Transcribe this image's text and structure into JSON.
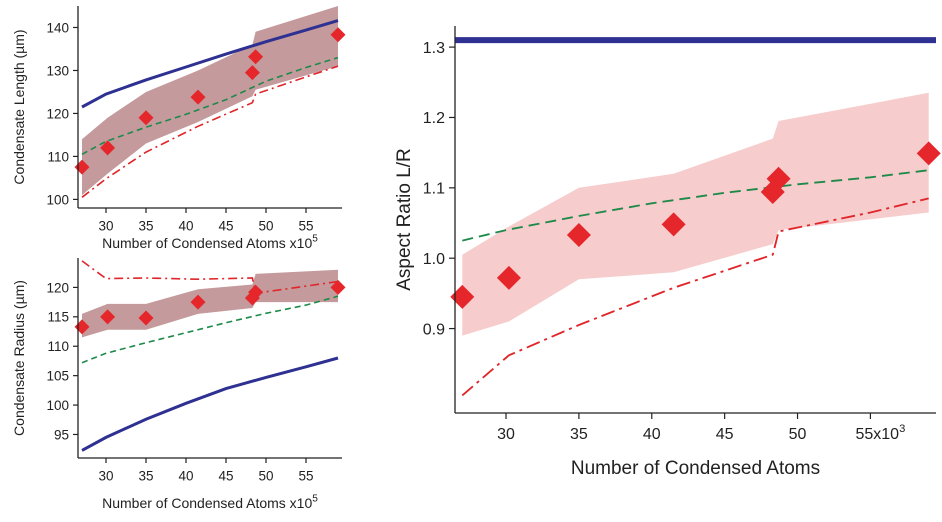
{
  "chart_data": [
    {
      "id": "length",
      "type": "scatter",
      "title": "",
      "xlabel": "Number of Condensed Atoms x10",
      "xlabel_exp": "5",
      "ylabel": "Condensate Length (µm)",
      "xlim": [
        26.5,
        59.5
      ],
      "ylim": [
        98,
        145
      ],
      "xticks": [
        30,
        35,
        40,
        45,
        50,
        55
      ],
      "xtick_labels": [
        "30",
        "35",
        "40",
        "45",
        "50",
        "55"
      ],
      "yticks": [
        100,
        110,
        120,
        130,
        140
      ],
      "ytick_labels": [
        "100",
        "110",
        "120",
        "130",
        "140"
      ],
      "band": {
        "x": [
          27,
          30.2,
          35,
          41.5,
          48.3,
          48.7,
          59
        ],
        "lower": [
          101,
          106,
          113,
          118,
          124,
          125.5,
          131
        ],
        "upper": [
          114,
          119,
          125,
          130,
          136,
          139,
          145
        ],
        "color": "#c49a9c"
      },
      "series": [
        {
          "style": "solid",
          "color": "#2e3192",
          "x": [
            27,
            30,
            35,
            40,
            45,
            50,
            55,
            59
          ],
          "y": [
            121.5,
            124.5,
            127.8,
            130.8,
            133.8,
            136.7,
            139.4,
            141.6
          ]
        },
        {
          "style": "dashed",
          "color": "#1e8a4a",
          "x": [
            27,
            30,
            35,
            40,
            45,
            50,
            55,
            59
          ],
          "y": [
            110.5,
            113.5,
            116.8,
            119.8,
            123.2,
            127.5,
            130.7,
            133
          ]
        },
        {
          "style": "dashdot",
          "color": "#e0262a",
          "x": [
            27,
            30,
            35,
            41.5,
            48.3,
            48.7,
            55,
            59
          ],
          "y": [
            100.5,
            104.8,
            111,
            117,
            122.5,
            124.5,
            128.5,
            131
          ]
        },
        {
          "style": "marker",
          "color": "#e5262b",
          "x": [
            27,
            30.2,
            35,
            41.5,
            48.3,
            48.7,
            59
          ],
          "y": [
            107.5,
            112,
            119,
            123.8,
            129.5,
            133.2,
            138.3
          ]
        }
      ]
    },
    {
      "id": "radius",
      "type": "scatter",
      "title": "",
      "xlabel": "Number of Condensed Atoms x10",
      "xlabel_exp": "5",
      "ylabel": "Condensate Radius (µm)",
      "xlim": [
        26.5,
        59.5
      ],
      "ylim": [
        91,
        125
      ],
      "xticks": [
        30,
        35,
        40,
        45,
        50,
        55
      ],
      "xtick_labels": [
        "30",
        "35",
        "40",
        "45",
        "50",
        "55"
      ],
      "yticks": [
        95,
        100,
        105,
        110,
        115,
        120
      ],
      "ytick_labels": [
        "95",
        "100",
        "105",
        "110",
        "115",
        "120"
      ],
      "band": {
        "x": [
          27,
          30.2,
          35,
          41.5,
          48.3,
          48.7,
          59
        ],
        "lower": [
          111.5,
          112.8,
          112.8,
          115.5,
          116.5,
          117.5,
          117.5
        ],
        "upper": [
          115.5,
          117.2,
          117.2,
          119.7,
          120.5,
          122.3,
          123
        ],
        "color": "#c49a9c"
      },
      "series": [
        {
          "style": "solid",
          "color": "#2e3192",
          "x": [
            27,
            30,
            35,
            40,
            45,
            50,
            55,
            59
          ],
          "y": [
            92.3,
            94.5,
            97.6,
            100.3,
            102.8,
            104.7,
            106.5,
            108
          ]
        },
        {
          "style": "dashed",
          "color": "#1e8a4a",
          "x": [
            27,
            30,
            35,
            40,
            45,
            50,
            55,
            59
          ],
          "y": [
            107.2,
            108.8,
            110.6,
            112.3,
            114,
            115.6,
            117,
            118.5
          ]
        },
        {
          "style": "dashdot",
          "color": "#e0262a",
          "x": [
            27,
            30,
            35,
            41.5,
            48.3,
            48.7,
            59
          ],
          "y": [
            124.5,
            121.5,
            121.6,
            121.4,
            121.6,
            119,
            121
          ]
        },
        {
          "style": "marker",
          "color": "#e5262b",
          "x": [
            27,
            30.2,
            35,
            41.5,
            48.3,
            48.7,
            59
          ],
          "y": [
            113.3,
            115,
            114.8,
            117.5,
            118.2,
            119.2,
            120
          ]
        }
      ]
    },
    {
      "id": "ratio",
      "type": "scatter",
      "title": "",
      "xlabel": "Number of Condensed Atoms",
      "ylabel": "Aspect Ratio L/R",
      "xlim": [
        26.5,
        59.5
      ],
      "ylim": [
        0.78,
        1.33
      ],
      "xticks": [
        30,
        35,
        40,
        45,
        50,
        55
      ],
      "xtick_labels": [
        "30",
        "35",
        "40",
        "45",
        "50",
        "55x10³"
      ],
      "yticks": [
        0.9,
        1.0,
        1.1,
        1.2,
        1.3
      ],
      "ytick_labels": [
        "0.9",
        "1.0",
        "1.1",
        "1.2",
        "1.3"
      ],
      "band": {
        "x": [
          27,
          30.2,
          35,
          41.5,
          48.3,
          48.7,
          59
        ],
        "lower": [
          0.89,
          0.91,
          0.97,
          0.98,
          1.02,
          1.04,
          1.065
        ],
        "upper": [
          1.005,
          1.045,
          1.1,
          1.12,
          1.17,
          1.195,
          1.235
        ],
        "color": "#f6cccc"
      },
      "series": [
        {
          "style": "solid",
          "color": "#2e3192",
          "x": [
            26.5,
            59.5
          ],
          "y": [
            1.31,
            1.31
          ]
        },
        {
          "style": "dashed",
          "color": "#1e8a4a",
          "x": [
            27,
            30,
            35,
            40,
            45,
            50,
            55,
            59
          ],
          "y": [
            1.025,
            1.04,
            1.06,
            1.078,
            1.093,
            1.105,
            1.115,
            1.125
          ]
        },
        {
          "style": "dashdot",
          "color": "#e0262a",
          "x": [
            27,
            30.2,
            35,
            41.5,
            48.3,
            48.7,
            55,
            59
          ],
          "y": [
            0.805,
            0.862,
            0.905,
            0.958,
            1.005,
            1.038,
            1.065,
            1.085
          ]
        },
        {
          "style": "marker",
          "color": "#e5262b",
          "x": [
            27,
            30.2,
            35,
            41.5,
            48.3,
            48.7,
            59
          ],
          "y": [
            0.945,
            0.972,
            1.033,
            1.048,
            1.094,
            1.113,
            1.149
          ]
        }
      ]
    }
  ]
}
